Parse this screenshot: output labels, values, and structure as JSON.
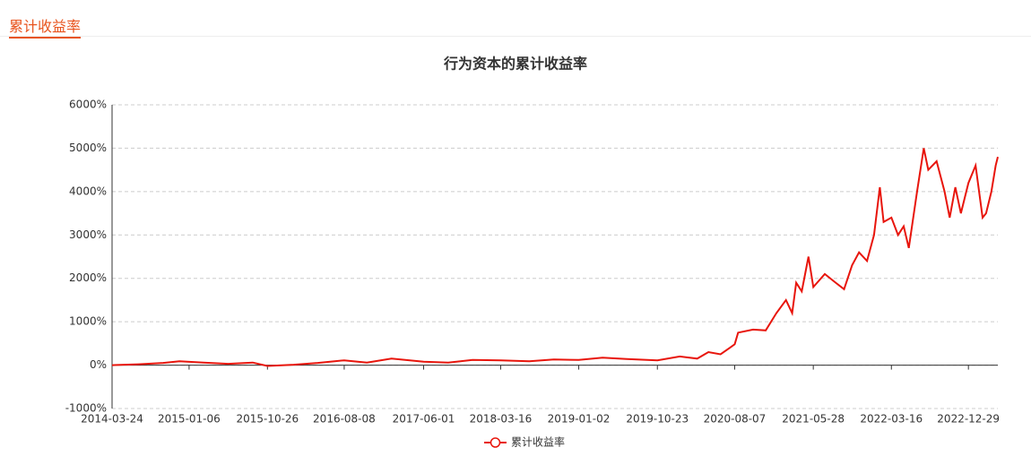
{
  "tab": "累计收益率",
  "chart_data": {
    "type": "line",
    "title": "行为资本的累计收益率",
    "x": [
      "2014-03-24",
      "2014-07-01",
      "2014-10-01",
      "2014-12-01",
      "2015-03-01",
      "2015-06-01",
      "2015-09-01",
      "2015-10-26",
      "2016-02-01",
      "2016-05-01",
      "2016-08-08",
      "2016-11-01",
      "2017-02-01",
      "2017-06-01",
      "2017-09-01",
      "2017-12-01",
      "2018-03-16",
      "2018-07-01",
      "2018-10-01",
      "2019-01-02",
      "2019-04-01",
      "2019-07-01",
      "2019-10-23",
      "2020-01-15",
      "2020-03-20",
      "2020-05-01",
      "2020-06-15",
      "2020-07-20",
      "2020-08-07",
      "2020-08-20",
      "2020-10-15",
      "2020-12-01",
      "2021-01-10",
      "2021-02-15",
      "2021-03-10",
      "2021-03-25",
      "2021-04-15",
      "2021-05-10",
      "2021-05-28",
      "2021-07-10",
      "2021-08-20",
      "2021-09-20",
      "2021-10-20",
      "2021-11-15",
      "2021-12-15",
      "2022-01-10",
      "2022-02-01",
      "2022-02-15",
      "2022-03-16",
      "2022-04-10",
      "2022-05-01",
      "2022-05-20",
      "2022-06-20",
      "2022-07-15",
      "2022-08-01",
      "2022-09-01",
      "2022-10-01",
      "2022-10-20",
      "2022-11-10",
      "2022-12-01",
      "2022-12-29",
      "2023-01-25",
      "2023-02-20",
      "2023-03-05",
      "2023-03-25",
      "2023-04-10",
      "2023-04-18"
    ],
    "series": [
      {
        "name": "累计收益率",
        "color": "#e8150c",
        "values": [
          0,
          20,
          50,
          90,
          60,
          30,
          60,
          -20,
          10,
          50,
          110,
          60,
          150,
          80,
          60,
          120,
          110,
          90,
          130,
          120,
          170,
          140,
          110,
          200,
          150,
          300,
          250,
          400,
          480,
          750,
          820,
          800,
          1200,
          1500,
          1200,
          1900,
          1700,
          2500,
          1800,
          2100,
          1900,
          1750,
          2300,
          2600,
          2400,
          3000,
          4100,
          3300,
          3400,
          3000,
          3200,
          2700,
          4000,
          5000,
          4500,
          4700,
          4000,
          3400,
          4100,
          3500,
          4200,
          4600,
          3400,
          3500,
          4000,
          4600,
          4800
        ]
      }
    ],
    "xlim": [
      "2014-03-24",
      "2023-04-18"
    ],
    "xticks": [
      "2014-03-24",
      "2015-01-06",
      "2015-10-26",
      "2016-08-08",
      "2017-06-01",
      "2018-03-16",
      "2019-01-02",
      "2019-10-23",
      "2020-08-07",
      "2021-05-28",
      "2022-03-16",
      "2022-12-29"
    ],
    "ylim": [
      -1000,
      6000
    ],
    "yticks": [
      {
        "value": -1000,
        "label": "-1000%"
      },
      {
        "value": 0,
        "label": "0%"
      },
      {
        "value": 1000,
        "label": "1000%"
      },
      {
        "value": 2000,
        "label": "2000%"
      },
      {
        "value": 3000,
        "label": "3000%"
      },
      {
        "value": 4000,
        "label": "4000%"
      },
      {
        "value": 5000,
        "label": "5000%"
      },
      {
        "value": 6000,
        "label": "6000%"
      }
    ],
    "grid": true
  }
}
